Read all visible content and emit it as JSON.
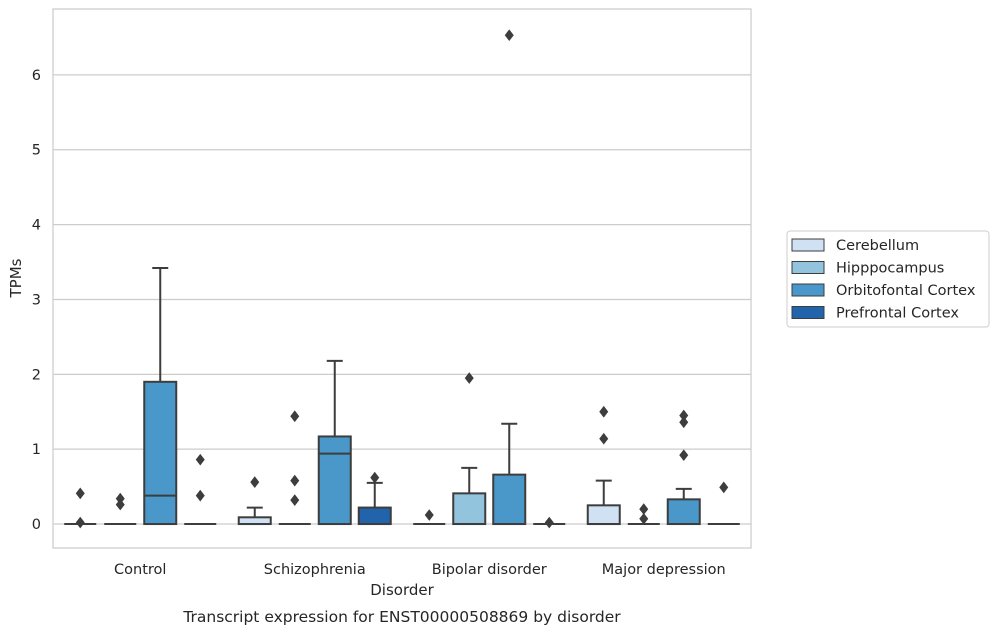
{
  "chart_data": {
    "type": "box",
    "title": "Transcript expression for ENST00000508869 by disorder",
    "xlabel": "Disorder",
    "ylabel": "TPMs",
    "ylim": [
      -0.32,
      6.88
    ],
    "yticks": [
      0,
      1,
      2,
      3,
      4,
      5,
      6
    ],
    "grid": true,
    "legend_position": "right",
    "categories": [
      "Control",
      "Schizophrenia",
      "Bipolar disorder",
      "Major depression"
    ],
    "series": [
      {
        "name": "Cerebellum",
        "color": "#cfe1f2"
      },
      {
        "name": "Hipppocampus",
        "color": "#93c4de"
      },
      {
        "name": "Orbitofontal Cortex",
        "color": "#4a98c9"
      },
      {
        "name": "Prefrontal Cortex",
        "color": "#2164ab"
      }
    ],
    "boxes": [
      {
        "category": "Control",
        "series": "Cerebellum",
        "q1": 0,
        "median": 0,
        "q3": 0,
        "whisker_low": 0,
        "whisker_high": 0,
        "outliers": [
          0.41,
          0.02
        ]
      },
      {
        "category": "Control",
        "series": "Hipppocampus",
        "q1": 0,
        "median": 0,
        "q3": 0,
        "whisker_low": 0,
        "whisker_high": 0,
        "outliers": [
          0.34,
          0.26
        ]
      },
      {
        "category": "Control",
        "series": "Orbitofontal Cortex",
        "q1": 0,
        "median": 0.38,
        "q3": 1.9,
        "whisker_low": 0,
        "whisker_high": 3.42,
        "outliers": []
      },
      {
        "category": "Control",
        "series": "Prefrontal Cortex",
        "q1": 0,
        "median": 0,
        "q3": 0,
        "whisker_low": 0,
        "whisker_high": 0,
        "outliers": [
          0.86,
          0.38
        ]
      },
      {
        "category": "Schizophrenia",
        "series": "Cerebellum",
        "q1": 0,
        "median": 0,
        "q3": 0.09,
        "whisker_low": 0,
        "whisker_high": 0.22,
        "outliers": [
          0.56
        ]
      },
      {
        "category": "Schizophrenia",
        "series": "Hipppocampus",
        "q1": 0,
        "median": 0,
        "q3": 0,
        "whisker_low": 0,
        "whisker_high": 0,
        "outliers": [
          1.44,
          0.58,
          0.32
        ]
      },
      {
        "category": "Schizophrenia",
        "series": "Orbitofontal Cortex",
        "q1": 0,
        "median": 0.94,
        "q3": 1.17,
        "whisker_low": 0,
        "whisker_high": 2.18,
        "outliers": []
      },
      {
        "category": "Schizophrenia",
        "series": "Prefrontal Cortex",
        "q1": 0,
        "median": 0,
        "q3": 0.22,
        "whisker_low": 0,
        "whisker_high": 0.55,
        "outliers": [
          0.62
        ]
      },
      {
        "category": "Bipolar disorder",
        "series": "Cerebellum",
        "q1": 0,
        "median": 0,
        "q3": 0,
        "whisker_low": 0,
        "whisker_high": 0,
        "outliers": [
          0.12
        ]
      },
      {
        "category": "Bipolar disorder",
        "series": "Hipppocampus",
        "q1": 0,
        "median": 0,
        "q3": 0.41,
        "whisker_low": 0,
        "whisker_high": 0.75,
        "outliers": [
          1.95
        ]
      },
      {
        "category": "Bipolar disorder",
        "series": "Orbitofontal Cortex",
        "q1": 0,
        "median": 0,
        "q3": 0.66,
        "whisker_low": 0,
        "whisker_high": 1.34,
        "outliers": [
          6.53
        ]
      },
      {
        "category": "Bipolar disorder",
        "series": "Prefrontal Cortex",
        "q1": 0,
        "median": 0,
        "q3": 0,
        "whisker_low": 0,
        "whisker_high": 0,
        "outliers": [
          0.02
        ]
      },
      {
        "category": "Major depression",
        "series": "Cerebellum",
        "q1": 0,
        "median": 0,
        "q3": 0.25,
        "whisker_low": 0,
        "whisker_high": 0.58,
        "outliers": [
          1.5,
          1.14
        ]
      },
      {
        "category": "Major depression",
        "series": "Hipppocampus",
        "q1": 0,
        "median": 0,
        "q3": 0,
        "whisker_low": 0,
        "whisker_high": 0,
        "outliers": [
          0.2,
          0.07
        ]
      },
      {
        "category": "Major depression",
        "series": "Orbitofontal Cortex",
        "q1": 0,
        "median": 0,
        "q3": 0.33,
        "whisker_low": 0,
        "whisker_high": 0.47,
        "outliers": [
          1.45,
          1.36,
          0.92
        ]
      },
      {
        "category": "Major depression",
        "series": "Prefrontal Cortex",
        "q1": 0,
        "median": 0,
        "q3": 0,
        "whisker_low": 0,
        "whisker_high": 0,
        "outliers": [
          0.49
        ]
      }
    ]
  }
}
